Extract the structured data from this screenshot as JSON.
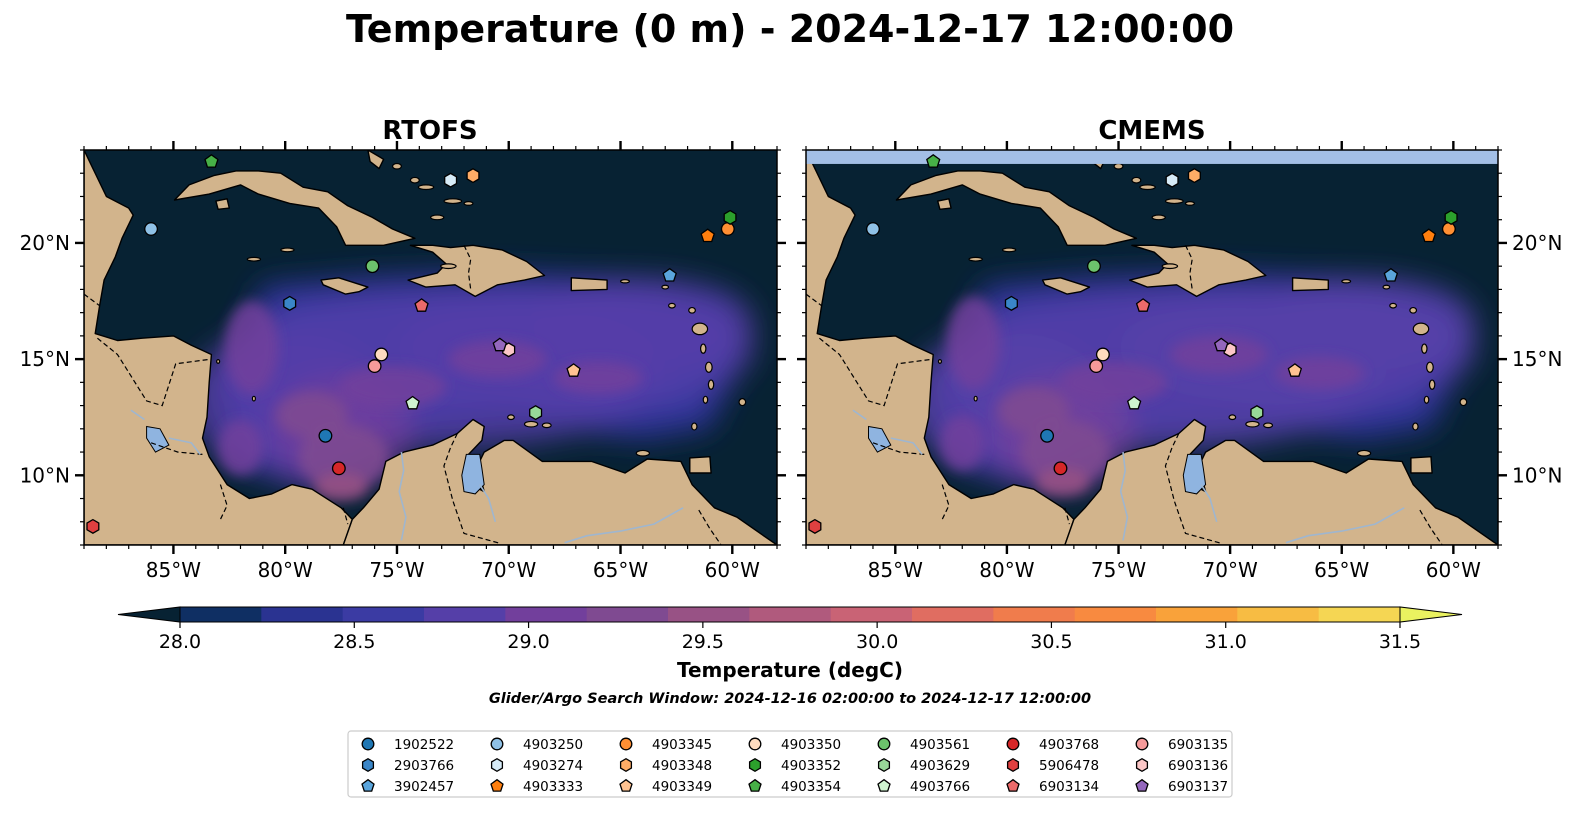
{
  "chart_data": {
    "type": "map-contour",
    "title": "Temperature (0 m) - 2024-12-17 12:00:00",
    "panels": [
      {
        "title": "RTOFS"
      },
      {
        "title": "CMEMS"
      }
    ],
    "lon_range": [
      -89,
      -58
    ],
    "lat_range": [
      7,
      24
    ],
    "lon_ticks": [
      -85,
      -80,
      -75,
      -70,
      -65,
      -60
    ],
    "lon_tick_labels": [
      "85°W",
      "80°W",
      "75°W",
      "70°W",
      "65°W",
      "60°W"
    ],
    "lat_ticks": [
      10,
      15,
      20
    ],
    "lat_tick_labels": [
      "10°N",
      "15°N",
      "20°N"
    ],
    "colorbar": {
      "label": "Temperature (degC)",
      "min": 28.0,
      "max": 31.5,
      "ticks": [
        28.0,
        28.5,
        29.0,
        29.5,
        30.0,
        30.5,
        31.0,
        31.5
      ],
      "tick_labels": [
        "28.0",
        "28.5",
        "29.0",
        "29.5",
        "30.0",
        "30.5",
        "31.0",
        "31.5"
      ],
      "colors": [
        "#072233",
        "#0f2f63",
        "#2a3391",
        "#3b3ba3",
        "#553fa8",
        "#723f9c",
        "#7f4a91",
        "#985285",
        "#b05a7d",
        "#c96375",
        "#e06d61",
        "#f07c4c",
        "#f88a40",
        "#f9a23a",
        "#f7bc43",
        "#f5d653",
        "#eaf260"
      ]
    },
    "subtitle": "Glider/Argo Search Window: 2024-12-16 02:00:00 to 2024-12-17 12:00:00",
    "floats": [
      {
        "id": "1902522",
        "marker": "circle",
        "color": "#1f77b4",
        "lon": -78.2,
        "lat": 11.7
      },
      {
        "id": "2903766",
        "marker": "hexagon",
        "color": "#3a86c8",
        "lon": -79.8,
        "lat": 17.4
      },
      {
        "id": "3902457",
        "marker": "pentagon",
        "color": "#5aa5dc",
        "lon": -62.8,
        "lat": 18.6
      },
      {
        "id": "4903250",
        "marker": "circle",
        "color": "#8fc1e6",
        "lon": -86.0,
        "lat": 20.6
      },
      {
        "id": "4903274",
        "marker": "hexagon",
        "color": "#d6ebf7",
        "lon": -72.6,
        "lat": 22.7
      },
      {
        "id": "4903333",
        "marker": "pentagon",
        "color": "#ff7f0e",
        "lon": -61.1,
        "lat": 20.3
      },
      {
        "id": "4903345",
        "marker": "circle",
        "color": "#ff8f33",
        "lon": -60.2,
        "lat": 20.6
      },
      {
        "id": "4903348",
        "marker": "hexagon",
        "color": "#ffac66",
        "lon": -71.6,
        "lat": 22.9
      },
      {
        "id": "4903349",
        "marker": "pentagon",
        "color": "#ffc391",
        "lon": -67.1,
        "lat": 14.5
      },
      {
        "id": "4903350",
        "marker": "circle",
        "color": "#ffdcbf",
        "lon": -75.7,
        "lat": 15.2
      },
      {
        "id": "4903352",
        "marker": "hexagon",
        "color": "#2ca02c",
        "lon": -60.1,
        "lat": 21.1
      },
      {
        "id": "4903354",
        "marker": "pentagon",
        "color": "#47b047",
        "lon": -83.3,
        "lat": 23.5
      },
      {
        "id": "4903561",
        "marker": "circle",
        "color": "#6cc26c",
        "lon": -76.1,
        "lat": 19.0
      },
      {
        "id": "4903629",
        "marker": "hexagon",
        "color": "#98d898",
        "lon": -68.8,
        "lat": 12.7
      },
      {
        "id": "4903766",
        "marker": "pentagon",
        "color": "#cff3cf",
        "lon": -74.3,
        "lat": 13.1
      },
      {
        "id": "4903768",
        "marker": "circle",
        "color": "#d62728",
        "lon": -77.6,
        "lat": 10.3
      },
      {
        "id": "5906478",
        "marker": "hexagon",
        "color": "#e04040",
        "lon": -88.6,
        "lat": 7.8
      },
      {
        "id": "6903134",
        "marker": "pentagon",
        "color": "#ec6a6a",
        "lon": -73.9,
        "lat": 17.3
      },
      {
        "id": "6903135",
        "marker": "circle",
        "color": "#f59a9a",
        "lon": -76.0,
        "lat": 14.7
      },
      {
        "id": "6903136",
        "marker": "hexagon",
        "color": "#fcc7c7",
        "lon": -70.0,
        "lat": 15.4
      },
      {
        "id": "6903137",
        "marker": "pentagon",
        "color": "#9467bd",
        "lon": -70.4,
        "lat": 15.6
      }
    ],
    "colors": {
      "ocean": "#072233",
      "land": "#d2b48c",
      "lake": "#8fb4e0",
      "coast": "#000000"
    }
  }
}
